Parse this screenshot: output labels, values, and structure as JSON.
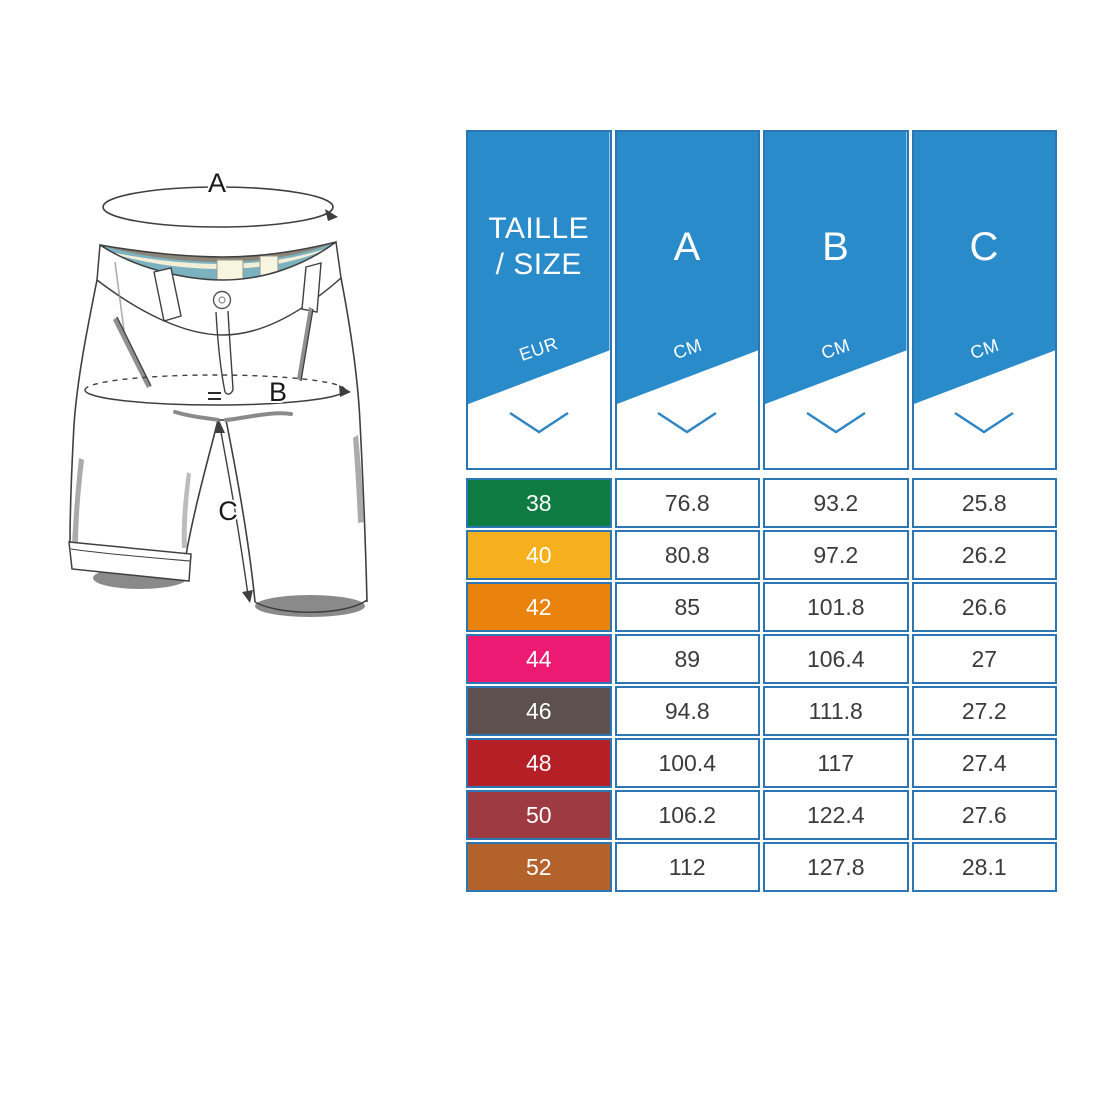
{
  "figure": {
    "name": "shorts measurement diagram",
    "labels": {
      "a": "A",
      "b": "B",
      "c": "C"
    }
  },
  "table": {
    "columns": [
      {
        "key": "size",
        "title": "TAILLE / SIZE",
        "title_lines": [
          "TAILLE",
          "/ SIZE"
        ],
        "unit": "EUR"
      },
      {
        "key": "a",
        "title": "A",
        "title_lines": [
          "A"
        ],
        "unit": "CM"
      },
      {
        "key": "b",
        "title": "B",
        "title_lines": [
          "B"
        ],
        "unit": "CM"
      },
      {
        "key": "c",
        "title": "C",
        "title_lines": [
          "C"
        ],
        "unit": "CM"
      }
    ],
    "rows": [
      {
        "size": "38",
        "color": "#0e7b42",
        "values": [
          "76.8",
          "93.2",
          "25.8"
        ]
      },
      {
        "size": "40",
        "color": "#f6b01e",
        "values": [
          "80.8",
          "97.2",
          "26.2"
        ]
      },
      {
        "size": "42",
        "color": "#e9830d",
        "values": [
          "85",
          "101.8",
          "26.6"
        ]
      },
      {
        "size": "44",
        "color": "#ec1a72",
        "values": [
          "89",
          "106.4",
          "27"
        ]
      },
      {
        "size": "46",
        "color": "#5d504e",
        "values": [
          "94.8",
          "111.8",
          "27.2"
        ]
      },
      {
        "size": "48",
        "color": "#b42025",
        "values": [
          "100.4",
          "117",
          "27.4"
        ]
      },
      {
        "size": "50",
        "color": "#9e3a41",
        "values": [
          "106.2",
          "122.4",
          "27.6"
        ]
      },
      {
        "size": "52",
        "color": "#b4622c",
        "values": [
          "112",
          "127.8",
          "28.1"
        ]
      }
    ],
    "colors": {
      "header_blue": "#2a8bcb",
      "border_blue": "#2d76b4",
      "chevron_blue": "#2f86c3",
      "value_text": "#3b3b3b"
    }
  },
  "chart_data": {
    "type": "table",
    "title": "Shorts size chart",
    "columns": [
      "TAILLE / SIZE (EUR)",
      "A (CM)",
      "B (CM)",
      "C (CM)"
    ],
    "rows": [
      [
        38,
        76.8,
        93.2,
        25.8
      ],
      [
        40,
        80.8,
        97.2,
        26.2
      ],
      [
        42,
        85,
        101.8,
        26.6
      ],
      [
        44,
        89,
        106.4,
        27
      ],
      [
        46,
        94.8,
        111.8,
        27.2
      ],
      [
        48,
        100.4,
        117,
        27.4
      ],
      [
        50,
        106.2,
        122.4,
        27.6
      ],
      [
        52,
        112,
        127.8,
        28.1
      ]
    ]
  }
}
